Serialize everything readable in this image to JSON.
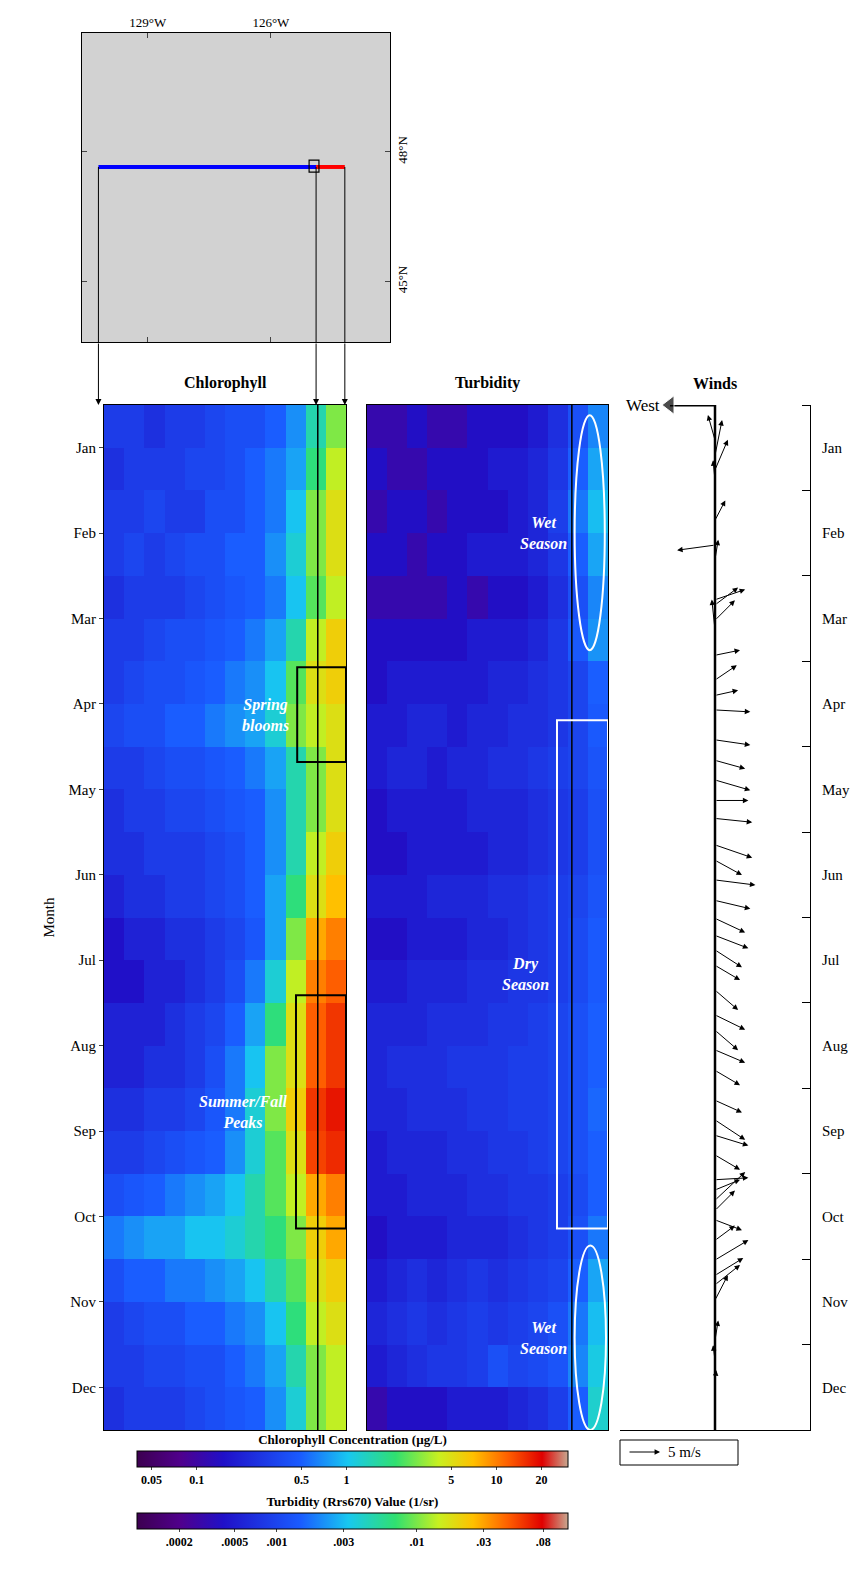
{
  "chart_data": [
    {
      "type": "map",
      "xlim": [
        -130.6,
        -123.1
      ],
      "xticks": [
        {
          "value": -129,
          "label": "129°W"
        },
        {
          "value": -126,
          "label": "126°W"
        }
      ],
      "ylim": [
        43.6,
        50.75
      ],
      "yticks": [
        {
          "value": 45,
          "label": "45°N"
        },
        {
          "value": 48,
          "label": "48°N"
        }
      ],
      "lines": [
        {
          "color": "#0000ff",
          "lon": [
            -130.2,
            -124.9
          ],
          "lat": [
            47.65,
            47.65
          ]
        },
        {
          "color": "#ff0000",
          "lon": [
            -124.9,
            -124.2
          ],
          "lat": [
            47.65,
            47.65
          ]
        }
      ],
      "box": {
        "lon": [
          -125.07,
          -124.83
        ],
        "lat": [
          47.53,
          47.81
        ]
      }
    },
    {
      "type": "heatmap",
      "title": "Chlorophyll",
      "y_title": "Month",
      "tick_labels": "y",
      "x": [
        -129.95,
        -129.45,
        -128.95,
        -128.45,
        -127.95,
        -127.45,
        -126.95,
        -126.45,
        -125.95,
        -125.45,
        -124.95,
        -124.45
      ],
      "y": [
        0.25,
        0.75,
        1.25,
        1.75,
        2.25,
        2.75,
        3.25,
        3.75,
        4.25,
        4.75,
        5.25,
        5.75,
        6.25,
        6.75,
        7.25,
        7.75,
        8.25,
        8.75,
        9.25,
        9.75,
        10.25,
        10.75,
        11.25,
        11.75
      ],
      "xlim": [
        -130.2,
        -124.2
      ],
      "ylim": [
        12,
        0
      ],
      "yticks": [
        {
          "value": 0.5,
          "label": "Jan"
        },
        {
          "value": 1.5,
          "label": "Feb"
        },
        {
          "value": 2.5,
          "label": "Mar"
        },
        {
          "value": 3.5,
          "label": "Apr"
        },
        {
          "value": 4.5,
          "label": "May"
        },
        {
          "value": 5.5,
          "label": "Jun"
        },
        {
          "value": 6.5,
          "label": "Jul"
        },
        {
          "value": 7.5,
          "label": "Aug"
        },
        {
          "value": 8.5,
          "label": "Sep"
        },
        {
          "value": 9.5,
          "label": "Oct"
        },
        {
          "value": 10.5,
          "label": "Nov"
        },
        {
          "value": 11.5,
          "label": "Dec"
        }
      ],
      "vline": -124.9,
      "z": [
        [
          0.3,
          0.3,
          0.25,
          0.3,
          0.3,
          0.35,
          0.4,
          0.4,
          0.5,
          0.7,
          1.5,
          3
        ],
        [
          0.25,
          0.3,
          0.3,
          0.3,
          0.35,
          0.35,
          0.4,
          0.5,
          0.6,
          0.8,
          2,
          4
        ],
        [
          0.3,
          0.3,
          0.35,
          0.3,
          0.3,
          0.4,
          0.4,
          0.5,
          0.6,
          1,
          3,
          5
        ],
        [
          0.3,
          0.35,
          0.3,
          0.35,
          0.4,
          0.4,
          0.5,
          0.5,
          0.7,
          1.2,
          3,
          5
        ],
        [
          0.25,
          0.3,
          0.3,
          0.3,
          0.35,
          0.4,
          0.45,
          0.5,
          0.6,
          1,
          2.5,
          4
        ],
        [
          0.3,
          0.3,
          0.35,
          0.4,
          0.4,
          0.45,
          0.5,
          0.6,
          0.8,
          1.5,
          4,
          6
        ],
        [
          0.3,
          0.35,
          0.4,
          0.4,
          0.45,
          0.5,
          0.6,
          0.7,
          1,
          2.5,
          5,
          6
        ],
        [
          0.35,
          0.4,
          0.4,
          0.5,
          0.5,
          0.6,
          0.7,
          0.8,
          1.2,
          3,
          4,
          5
        ],
        [
          0.3,
          0.3,
          0.35,
          0.4,
          0.4,
          0.45,
          0.5,
          0.6,
          0.8,
          1.5,
          3,
          5
        ],
        [
          0.25,
          0.3,
          0.3,
          0.35,
          0.35,
          0.4,
          0.45,
          0.5,
          0.7,
          1.5,
          3,
          5
        ],
        [
          0.25,
          0.25,
          0.3,
          0.3,
          0.3,
          0.35,
          0.4,
          0.5,
          0.7,
          1.5,
          4,
          6
        ],
        [
          0.2,
          0.25,
          0.25,
          0.3,
          0.3,
          0.35,
          0.4,
          0.5,
          0.8,
          2,
          5,
          7
        ],
        [
          0.15,
          0.2,
          0.2,
          0.25,
          0.25,
          0.3,
          0.35,
          0.45,
          0.8,
          3,
          8,
          10
        ],
        [
          0.15,
          0.15,
          0.2,
          0.2,
          0.25,
          0.3,
          0.4,
          0.6,
          1.2,
          4,
          10,
          12
        ],
        [
          0.2,
          0.2,
          0.2,
          0.25,
          0.3,
          0.35,
          0.5,
          0.8,
          2,
          5,
          12,
          15
        ],
        [
          0.2,
          0.2,
          0.25,
          0.25,
          0.3,
          0.4,
          0.6,
          1,
          3,
          5,
          12,
          15
        ],
        [
          0.25,
          0.25,
          0.3,
          0.3,
          0.35,
          0.45,
          0.6,
          1.2,
          3,
          6,
          15,
          18
        ],
        [
          0.3,
          0.3,
          0.35,
          0.4,
          0.45,
          0.5,
          0.7,
          1.2,
          2.5,
          5,
          14,
          16
        ],
        [
          0.4,
          0.45,
          0.5,
          0.6,
          0.7,
          0.8,
          1,
          1.5,
          2.5,
          4,
          8,
          10
        ],
        [
          0.6,
          0.7,
          0.8,
          0.8,
          1,
          1,
          1.2,
          1.5,
          2,
          3,
          6,
          8
        ],
        [
          0.4,
          0.5,
          0.5,
          0.6,
          0.6,
          0.7,
          0.8,
          1,
          1.5,
          2.5,
          5,
          6
        ],
        [
          0.3,
          0.35,
          0.4,
          0.4,
          0.5,
          0.5,
          0.6,
          0.7,
          1,
          2,
          4,
          5
        ],
        [
          0.3,
          0.3,
          0.35,
          0.35,
          0.4,
          0.4,
          0.5,
          0.6,
          0.8,
          1.5,
          3,
          4
        ],
        [
          0.25,
          0.3,
          0.3,
          0.3,
          0.35,
          0.4,
          0.45,
          0.5,
          0.7,
          1.2,
          3,
          4
        ]
      ],
      "colorbar": {
        "title": "Chlorophyll Concentration (µg/L)",
        "log": true,
        "range": [
          0.04,
          30
        ],
        "ticks": [
          0.05,
          0.1,
          0.5,
          1,
          5,
          10,
          20
        ]
      },
      "annotations": [
        {
          "text": "Spring blooms",
          "color": "#000000",
          "box": {
            "x": [
              -125.41,
              -124.2
            ],
            "y": [
              3.07,
              4.18
            ]
          }
        },
        {
          "text": "Summer/Fall Peaks",
          "color": "#000000",
          "box": {
            "x": [
              -125.44,
              -124.2
            ],
            "y": [
              6.91,
              9.64
            ]
          }
        }
      ]
    },
    {
      "type": "heatmap",
      "title": "Turbidity",
      "tick_labels": false,
      "x": [
        -129.95,
        -129.45,
        -128.95,
        -128.45,
        -127.95,
        -127.45,
        -126.95,
        -126.45,
        -125.95,
        -125.45,
        -124.95,
        -124.45
      ],
      "y": [
        0.25,
        0.75,
        1.25,
        1.75,
        2.25,
        2.75,
        3.25,
        3.75,
        4.25,
        4.75,
        5.25,
        5.75,
        6.25,
        6.75,
        7.25,
        7.75,
        8.25,
        8.75,
        9.25,
        9.75,
        10.25,
        10.75,
        11.25,
        11.75
      ],
      "xlim": [
        -130.2,
        -124.2
      ],
      "ylim": [
        12,
        0
      ],
      "vline": -125.1,
      "z": [
        [
          0.0003,
          0.0003,
          0.0004,
          0.0003,
          0.0003,
          0.0004,
          0.0004,
          0.0004,
          0.0005,
          0.0007,
          0.0012,
          0.002
        ],
        [
          0.0004,
          0.0003,
          0.0003,
          0.0004,
          0.0004,
          0.0004,
          0.0005,
          0.0005,
          0.0006,
          0.0008,
          0.0015,
          0.0025
        ],
        [
          0.0003,
          0.0004,
          0.0004,
          0.0003,
          0.0004,
          0.0004,
          0.0004,
          0.0005,
          0.0006,
          0.0009,
          0.0018,
          0.003
        ],
        [
          0.0004,
          0.0004,
          0.0003,
          0.0004,
          0.0004,
          0.0005,
          0.0005,
          0.0005,
          0.0006,
          0.0008,
          0.0015,
          0.0025
        ],
        [
          0.0003,
          0.0003,
          0.0003,
          0.0003,
          0.0004,
          0.0003,
          0.0004,
          0.0004,
          0.0005,
          0.0007,
          0.0012,
          0.002
        ],
        [
          0.0004,
          0.0004,
          0.0004,
          0.0004,
          0.0004,
          0.0005,
          0.0005,
          0.0005,
          0.0006,
          0.0008,
          0.0014,
          0.0022
        ],
        [
          0.0004,
          0.0005,
          0.0005,
          0.0005,
          0.0005,
          0.0005,
          0.0006,
          0.0006,
          0.0007,
          0.0008,
          0.001,
          0.0015
        ],
        [
          0.0005,
          0.0005,
          0.0006,
          0.0006,
          0.0005,
          0.0006,
          0.0006,
          0.0007,
          0.0007,
          0.0008,
          0.001,
          0.0014
        ],
        [
          0.0005,
          0.0006,
          0.0006,
          0.0005,
          0.0006,
          0.0006,
          0.0007,
          0.0007,
          0.0008,
          0.0009,
          0.001,
          0.0013
        ],
        [
          0.0004,
          0.0005,
          0.0005,
          0.0005,
          0.0005,
          0.0006,
          0.0006,
          0.0006,
          0.0007,
          0.0008,
          0.0009,
          0.0012
        ],
        [
          0.0004,
          0.0004,
          0.0005,
          0.0005,
          0.0005,
          0.0005,
          0.0006,
          0.0006,
          0.0007,
          0.0008,
          0.0009,
          0.0012
        ],
        [
          0.0005,
          0.0005,
          0.0005,
          0.0006,
          0.0006,
          0.0006,
          0.0007,
          0.0007,
          0.0008,
          0.0009,
          0.001,
          0.0013
        ],
        [
          0.0004,
          0.0004,
          0.0005,
          0.0005,
          0.0005,
          0.0006,
          0.0006,
          0.0007,
          0.0008,
          0.0009,
          0.0011,
          0.0014
        ],
        [
          0.0005,
          0.0005,
          0.0006,
          0.0006,
          0.0006,
          0.0007,
          0.0007,
          0.0008,
          0.0008,
          0.0009,
          0.0011,
          0.0014
        ],
        [
          0.0006,
          0.0006,
          0.0006,
          0.0007,
          0.0007,
          0.0007,
          0.0008,
          0.0008,
          0.0009,
          0.001,
          0.0012,
          0.0015
        ],
        [
          0.0006,
          0.0007,
          0.0007,
          0.0007,
          0.0008,
          0.0008,
          0.0008,
          0.0009,
          0.0009,
          0.001,
          0.0012,
          0.0015
        ],
        [
          0.0006,
          0.0006,
          0.0007,
          0.0007,
          0.0007,
          0.0008,
          0.0008,
          0.0009,
          0.0009,
          0.001,
          0.0012,
          0.0016
        ],
        [
          0.0005,
          0.0006,
          0.0006,
          0.0006,
          0.0007,
          0.0007,
          0.0008,
          0.0008,
          0.0009,
          0.001,
          0.0012,
          0.0015
        ],
        [
          0.0005,
          0.0005,
          0.0006,
          0.0006,
          0.0006,
          0.0007,
          0.0007,
          0.0008,
          0.0008,
          0.0009,
          0.0011,
          0.0015
        ],
        [
          0.0004,
          0.0005,
          0.0005,
          0.0005,
          0.0006,
          0.0006,
          0.0006,
          0.0007,
          0.0008,
          0.0009,
          0.0012,
          0.0018
        ],
        [
          0.0005,
          0.0006,
          0.0007,
          0.0006,
          0.0007,
          0.0008,
          0.0007,
          0.0008,
          0.0009,
          0.001,
          0.0015,
          0.0025
        ],
        [
          0.0006,
          0.0007,
          0.0008,
          0.0007,
          0.0008,
          0.0009,
          0.0008,
          0.0009,
          0.001,
          0.0012,
          0.0018,
          0.003
        ],
        [
          0.0005,
          0.0006,
          0.0007,
          0.0008,
          0.0008,
          0.0009,
          0.0012,
          0.001,
          0.0011,
          0.0013,
          0.002,
          0.0035
        ],
        [
          0.0003,
          0.0004,
          0.0004,
          0.0004,
          0.0005,
          0.0005,
          0.0005,
          0.0006,
          0.0007,
          0.0009,
          0.0015,
          0.004
        ]
      ],
      "colorbar": {
        "title": "Turbidity (Rrs670) Value (1/sr)",
        "log": true,
        "range": [
          0.0001,
          0.12
        ],
        "ticks": [
          {
            "value": 0.0002,
            "label": ".0002"
          },
          {
            "value": 0.0005,
            "label": ".0005"
          },
          {
            "value": 0.001,
            "label": ".001"
          },
          {
            "value": 0.003,
            "label": ".003"
          },
          {
            "value": 0.01,
            "label": ".01"
          },
          {
            "value": 0.03,
            "label": ".03"
          },
          {
            "value": 0.08,
            "label": ".08"
          }
        ]
      },
      "annotations": [
        {
          "text": "Wet Season",
          "color": "#ffffff",
          "ellipse": {
            "x": [
              -125.03,
              -124.28
            ],
            "y": [
              0.12,
              2.87
            ]
          }
        },
        {
          "text": "Dry Season",
          "color": "#ffffff",
          "box": {
            "x": [
              -125.47,
              -124.2
            ],
            "y": [
              3.69,
              9.64
            ]
          }
        },
        {
          "text": "Wet Season",
          "color": "#ffffff",
          "ellipse": {
            "x": [
              -125.03,
              -124.25
            ],
            "y": [
              9.84,
              12
            ]
          }
        }
      ]
    },
    {
      "type": "vector",
      "title": "Winds",
      "direction_label": "West",
      "tick_labels": "y",
      "xlim": [
        -14.8,
        14.8
      ],
      "ylim": [
        12,
        0
      ],
      "yticks": [
        {
          "value": 0.5,
          "label": "Jan"
        },
        {
          "value": 1.5,
          "label": "Feb"
        },
        {
          "value": 2.5,
          "label": "Mar"
        },
        {
          "value": 3.5,
          "label": "Apr"
        },
        {
          "value": 4.5,
          "label": "May"
        },
        {
          "value": 5.5,
          "label": "Jun"
        },
        {
          "value": 6.5,
          "label": "Jul"
        },
        {
          "value": 7.5,
          "label": "Aug"
        },
        {
          "value": 8.5,
          "label": "Sep"
        },
        {
          "value": 9.5,
          "label": "Oct"
        },
        {
          "value": 10.5,
          "label": "Nov"
        },
        {
          "value": 11.5,
          "label": "Dec"
        }
      ],
      "t": [
        0.41,
        0.59,
        0.76,
        0.88,
        1.35,
        1.64,
        1.81,
        2.28,
        2.34,
        2.52,
        2.63,
        2.93,
        3.22,
        3.4,
        3.57,
        3.92,
        4.16,
        4.39,
        4.63,
        4.84,
        5.15,
        5.33,
        5.56,
        5.8,
        6.01,
        6.21,
        6.38,
        6.56,
        6.85,
        7.14,
        7.32,
        7.55,
        7.79,
        8.14,
        8.37,
        8.55,
        8.78,
        9.07,
        9.19,
        9.31,
        9.43,
        9.54,
        9.78,
        10.01,
        10.19,
        10.3,
        10.48,
        10.95,
        11.18,
        11.42
      ],
      "u": [
        -1.1,
        1.1,
        2.0,
        -0.3,
        1.6,
        -5.9,
        0.5,
        4.7,
        3.6,
        3.1,
        -0.5,
        3.9,
        3.4,
        3.6,
        5.5,
        5.5,
        4.7,
        5.5,
        5.2,
        5.8,
        5.8,
        4.2,
        6.3,
        5.5,
        4.7,
        5.2,
        4.2,
        3.9,
        3.6,
        4.7,
        3.6,
        4.7,
        3.9,
        4.2,
        4.7,
        5.2,
        3.9,
        5.2,
        3.9,
        4.7,
        3.1,
        4.2,
        3.1,
        5.2,
        4.4,
        3.9,
        2.0,
        0.5,
        -0.3,
        0.2
      ],
      "v": [
        3.9,
        5.5,
        4.7,
        3.1,
        3.1,
        -0.8,
        3.1,
        1.6,
        2.7,
        3.1,
        4.7,
        0.8,
        2.3,
        0.8,
        -0.3,
        -0.8,
        -1.3,
        -1.6,
        0,
        -0.6,
        -2.0,
        -2.3,
        -0.8,
        -1.3,
        -2.2,
        -2.0,
        -2.7,
        -2.3,
        -3.1,
        -2.3,
        -3.1,
        -2.0,
        -2.3,
        -1.9,
        -3.1,
        -1.6,
        -2.3,
        0.3,
        1.6,
        4.4,
        3.1,
        -1.6,
        2.3,
        3.1,
        2.7,
        3.1,
        3.9,
        3.1,
        2.3,
        1.6
      ],
      "scale": {
        "value": 5,
        "label": "5 m/s"
      }
    }
  ]
}
